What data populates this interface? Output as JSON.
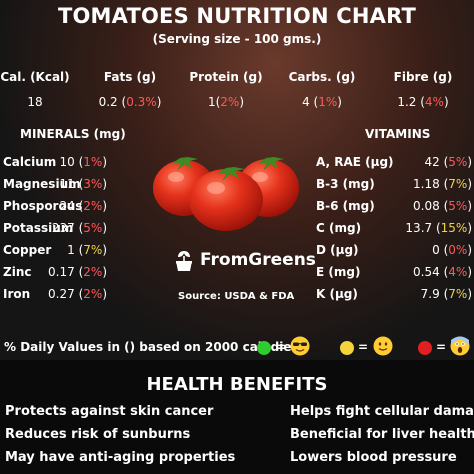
{
  "title": "TOMATOES NUTRITION CHART",
  "subtitle": "(Serving size - 100 gms.)",
  "macros": [
    {
      "label": "Cal. (Kcal)",
      "value": "18",
      "pct": ""
    },
    {
      "label": "Fats (g)",
      "value": "0.2",
      "pct": "0.3%"
    },
    {
      "label": "Protein (g)",
      "value": "1",
      "pct": "2%"
    },
    {
      "label": "Carbs. (g)",
      "value": "4",
      "pct": "1%"
    },
    {
      "label": "Fibre (g)",
      "value": "1.2",
      "pct": "4%"
    }
  ],
  "minerals": {
    "heading": "MINERALS (mg)",
    "items": [
      {
        "name": "Calcium",
        "value": "10",
        "pct": "1%",
        "level": "red"
      },
      {
        "name": "Magnesium",
        "value": "11",
        "pct": "3%",
        "level": "red"
      },
      {
        "name": "Phosporous",
        "value": "24",
        "pct": "2%",
        "level": "red"
      },
      {
        "name": "Potassium",
        "value": "237",
        "pct": "5%",
        "level": "red"
      },
      {
        "name": "Copper",
        "value": "1",
        "pct": "7%",
        "level": "yellow"
      },
      {
        "name": "Zinc",
        "value": "0.17",
        "pct": "2%",
        "level": "red"
      },
      {
        "name": "Iron",
        "value": "0.27",
        "pct": "2%",
        "level": "red"
      }
    ]
  },
  "vitamins": {
    "heading": "VITAMINS",
    "items": [
      {
        "name": "A, RAE (μg)",
        "value": "42",
        "pct": "5%",
        "level": "red"
      },
      {
        "name": "B-3 (mg)",
        "value": "1.18",
        "pct": "7%",
        "level": "yellow"
      },
      {
        "name": "B-6 (mg)",
        "value": "0.08",
        "pct": "5%",
        "level": "red"
      },
      {
        "name": "C (mg)",
        "value": "13.7",
        "pct": "15%",
        "level": "yellow"
      },
      {
        "name": "D (μg)",
        "value": "0",
        "pct": "0%",
        "level": "red"
      },
      {
        "name": "E (mg)",
        "value": "0.54",
        "pct": "4%",
        "level": "red"
      },
      {
        "name": "K (μg)",
        "value": "7.9",
        "pct": "7%",
        "level": "yellow"
      }
    ]
  },
  "brand": "FromGreens",
  "source": "Source: USDA & FDA",
  "footnote": "% Daily Values in () based on 2000 cal. diet",
  "legend": [
    {
      "color": "#2ecc2e",
      "icon": "cool-sunglasses-emoji"
    },
    {
      "color": "#f5d33c",
      "icon": "smiling-emoji"
    },
    {
      "color": "#e02020",
      "icon": "screaming-emoji"
    }
  ],
  "legend_eq": "=",
  "health": {
    "heading": "HEALTH BENEFITS",
    "left": [
      "Protects against skin cancer",
      "Reduces risk of sunburns",
      "May have anti-aging properties"
    ],
    "right": [
      "Helps fight cellular damage",
      "Beneficial for liver health",
      "Lowers blood pressure"
    ]
  }
}
